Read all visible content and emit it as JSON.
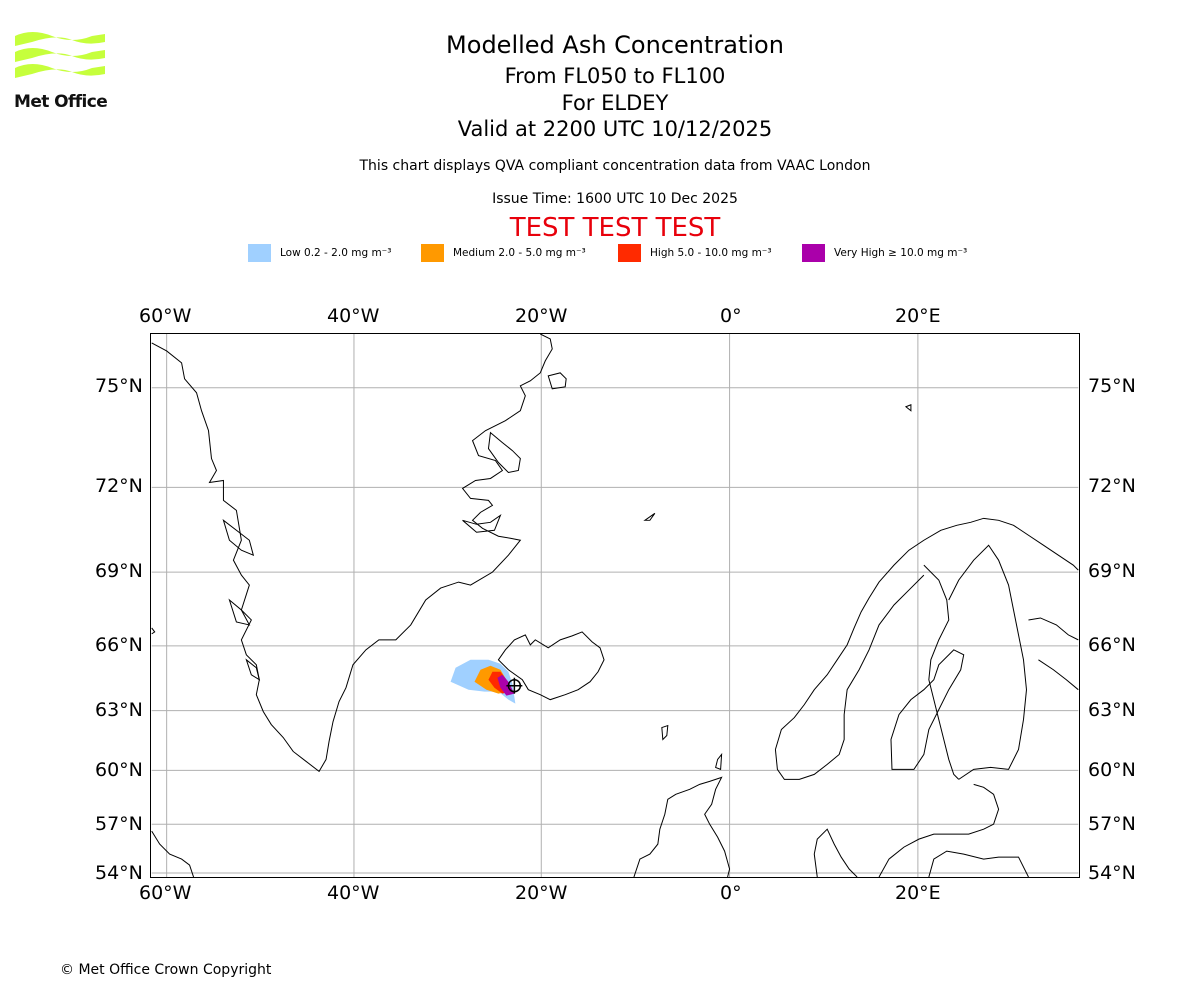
{
  "header": {
    "title": "Modelled Ash Concentration",
    "level_range": "From FL050 to FL100",
    "volcano": "For ELDEY",
    "valid_time": "Valid at 2200 UTC 10/12/2025",
    "description": "This chart displays QVA compliant concentration data from VAAC London",
    "issue_time": "Issue Time: 1600 UTC 10 Dec 2025",
    "test_banner": "TEST TEST TEST"
  },
  "logo": {
    "text": "Met Office",
    "color": "#c6ff3c"
  },
  "legend": [
    {
      "label": "Low 0.2 - 2.0 mg m⁻³",
      "color": "#a0d0ff"
    },
    {
      "label": "Medium 2.0 - 5.0 mg m⁻³",
      "color": "#ff9900"
    },
    {
      "label": "High 5.0 - 10.0 mg m⁻³",
      "color": "#ff2a00"
    },
    {
      "label": "Very High ≥ 10.0 mg m⁻³",
      "color": "#aa00aa"
    }
  ],
  "axes": {
    "longitude_labels": [
      "60°W",
      "40°W",
      "20°W",
      "0°",
      "20°E"
    ],
    "latitude_labels": [
      "75°N",
      "72°N",
      "69°N",
      "66°N",
      "63°N",
      "60°N",
      "57°N",
      "54°N"
    ]
  },
  "footer": {
    "copyright": "© Met Office Crown Copyright"
  }
}
